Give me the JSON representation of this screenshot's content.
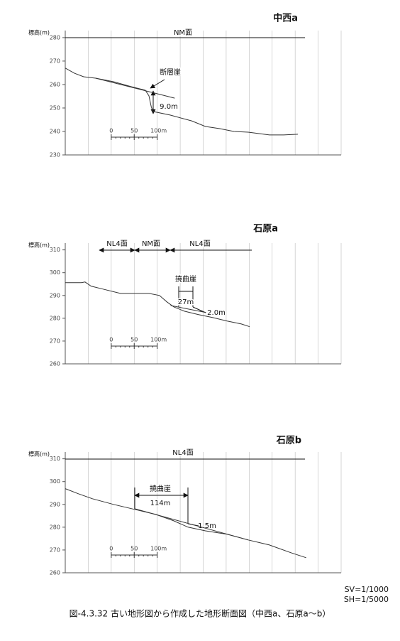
{
  "chart_data": [
    {
      "type": "line",
      "title": "中西a",
      "y_label": "標高(m)",
      "ylim": [
        230,
        283
      ],
      "yticks": [
        230,
        240,
        250,
        260,
        270,
        280
      ],
      "xlim": [
        -100,
        500
      ],
      "xgrid": [
        -100,
        -50,
        0,
        50,
        100,
        150,
        200,
        250,
        300,
        350,
        400,
        450,
        500
      ],
      "scale_bar": [
        0,
        50,
        {
          "value": 100,
          "label": "100m"
        }
      ],
      "color": "#333333",
      "series": [
        {
          "x": [
            -100,
            -80,
            -60,
            -34,
            5,
            43,
            74,
            82,
            87,
            91,
            128,
            175,
            205,
            236,
            267,
            298,
            344,
            375,
            406
          ],
          "values": [
            267.0,
            264.8,
            263.3,
            262.7,
            261.2,
            259.1,
            257.6,
            255.2,
            250.6,
            248.5,
            247.0,
            244.5,
            242.1,
            241.2,
            240.0,
            239.7,
            238.5,
            238.5,
            238.8
          ]
        },
        {
          "x": [
            -34,
            138
          ],
          "values": [
            262.7,
            254.2
          ]
        }
      ],
      "annotations": [
        "NM面",
        "断層崖",
        "9.0m"
      ]
    },
    {
      "type": "line",
      "title": "石原a",
      "y_label": "標高(m)",
      "ylim": [
        260,
        313
      ],
      "yticks": [
        260,
        270,
        280,
        290,
        300,
        310
      ],
      "xlim": [
        -100,
        500
      ],
      "xgrid": [
        -100,
        -50,
        0,
        50,
        100,
        150,
        200,
        250,
        300,
        350,
        400,
        450,
        500
      ],
      "scale_bar": [
        0,
        50,
        {
          "value": 100,
          "label": "100m"
        }
      ],
      "color": "#333333",
      "series": [
        {
          "x": [
            -100,
            -65,
            -57,
            -44,
            -18,
            20,
            51,
            82,
            105,
            121,
            136,
            159,
            190,
            221,
            252,
            283,
            301
          ],
          "values": [
            295.6,
            295.6,
            295.9,
            294.1,
            292.8,
            290.9,
            290.9,
            290.9,
            290.0,
            287.2,
            285.0,
            283.1,
            281.6,
            280.3,
            278.8,
            277.5,
            276.3
          ]
        },
        {
          "x": [
            129,
            206
          ],
          "values": [
            285.6,
            282.5
          ]
        }
      ],
      "annotations": [
        "NL4面",
        "NM面",
        "NL4面",
        "撓曲崖",
        "27m",
        "2.0m"
      ]
    },
    {
      "type": "line",
      "title": "石原b",
      "y_label": "標高(m)",
      "ylim": [
        260,
        313
      ],
      "yticks": [
        260,
        270,
        280,
        290,
        300,
        310
      ],
      "xlim": [
        -100,
        500
      ],
      "xgrid": [
        -100,
        -50,
        0,
        50,
        100,
        150,
        200,
        250,
        300,
        350,
        400,
        450,
        500
      ],
      "scale_bar": [
        0,
        50,
        {
          "value": 100,
          "label": "100m"
        }
      ],
      "color": "#333333",
      "series": [
        {
          "x": [
            -100,
            -72,
            -41,
            5,
            51,
            97,
            136,
            167,
            205,
            252,
            298,
            344,
            391,
            424
          ],
          "values": [
            296.9,
            294.7,
            292.5,
            290.0,
            287.8,
            285.6,
            282.8,
            280.0,
            278.4,
            276.9,
            274.4,
            272.2,
            268.8,
            266.6
          ]
        },
        {
          "x": [
            51,
            298
          ],
          "values": [
            288.1,
            274.4
          ]
        }
      ],
      "annotations": [
        "NL4面",
        "撓曲崖",
        "114m",
        "1.5m"
      ]
    }
  ],
  "notes": [
    "SV=1/1000",
    "SH=1/5000"
  ],
  "caption": "図-4.3.32 古い地形図から作成した地形断面図（中西a、石原a～b）"
}
